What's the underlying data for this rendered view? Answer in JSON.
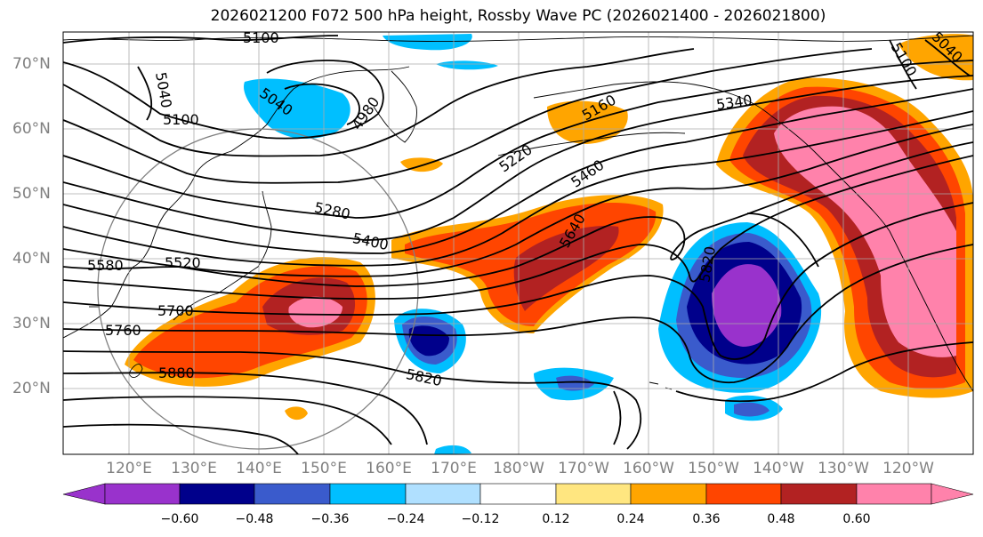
{
  "title": "2026021200 F072 500 hPa height, Rossby Wave PC (2026021400 - 2026021800)",
  "lat_labels": [
    "70°N",
    "60°N",
    "50°N",
    "40°N",
    "30°N",
    "20°N"
  ],
  "lon_labels": [
    "120°E",
    "130°E",
    "140°E",
    "150°E",
    "160°E",
    "170°E",
    "180°W",
    "170°W",
    "160°W",
    "150°W",
    "140°W",
    "130°W",
    "120°W"
  ],
  "contour_labels": [
    "5100",
    "5040",
    "5100",
    "5040",
    "4980",
    "5220",
    "5160",
    "5100",
    "5040",
    "5340",
    "5460",
    "5280",
    "5400",
    "5640",
    "5580",
    "5520",
    "5700",
    "5820",
    "5760",
    "5880",
    "5820"
  ],
  "colorbar": {
    "ticks": [
      "−0.60",
      "−0.48",
      "−0.36",
      "−0.24",
      "−0.12",
      "0.12",
      "0.24",
      "0.36",
      "0.48",
      "0.60"
    ],
    "colors": [
      "#9932cc",
      "#00008b",
      "#3a5bcc",
      "#00bfff",
      "#b0e0ff",
      "#ffffff",
      "#ffe680",
      "#ffa500",
      "#ff4500",
      "#b22222",
      "#ff82ab"
    ]
  }
}
